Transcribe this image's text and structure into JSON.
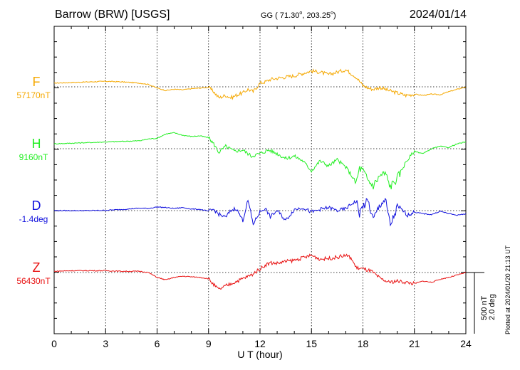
{
  "header": {
    "station": "Barrow (BRW)  [USGS]",
    "coords_prefix": "GG ( 71.30",
    "coords_mid": ", 203.25",
    "coords_suffix": ")",
    "degree_sign": "o",
    "date": "2024/01/14"
  },
  "scale": {
    "line1": "500 nT",
    "line2": "2.0 deg"
  },
  "plotted_note": "Plotted at 2024/01/20 21:13 UT",
  "chart_data": {
    "type": "line",
    "xlabel": "U T (hour)",
    "xlim": [
      0,
      24
    ],
    "xticks": [
      0,
      3,
      6,
      9,
      12,
      15,
      18,
      21,
      24
    ],
    "scale_bar": {
      "nT": 500,
      "deg": 2.0
    },
    "grid": true,
    "series": [
      {
        "name": "F",
        "baseline_label": "57170nT",
        "baseline_value": 57170,
        "unit": "nT",
        "color": "#f5a800",
        "x": [
          0,
          1,
          2,
          3,
          4,
          5,
          5.5,
          6,
          6.5,
          7,
          7.5,
          8,
          8.5,
          9,
          9.3,
          9.6,
          10,
          10.3,
          10.6,
          11,
          11.3,
          11.6,
          12,
          12.3,
          12.6,
          13,
          13.5,
          14,
          14.5,
          15,
          15.5,
          16,
          16.5,
          17,
          17.3,
          17.6,
          18,
          18.3,
          18.6,
          19,
          19.5,
          20,
          20.5,
          21,
          21.5,
          22,
          22.5,
          23,
          23.5,
          24
        ],
        "y": [
          57200,
          57205,
          57210,
          57215,
          57210,
          57200,
          57190,
          57160,
          57140,
          57150,
          57145,
          57155,
          57160,
          57165,
          57130,
          57080,
          57100,
          57080,
          57100,
          57120,
          57150,
          57130,
          57200,
          57210,
          57230,
          57240,
          57250,
          57260,
          57280,
          57300,
          57290,
          57270,
          57290,
          57310,
          57280,
          57250,
          57180,
          57160,
          57150,
          57165,
          57140,
          57120,
          57100,
          57110,
          57100,
          57110,
          57105,
          57130,
          57150,
          57170
        ]
      },
      {
        "name": "H",
        "baseline_label": "9160nT",
        "baseline_value": 9160,
        "unit": "nT",
        "color": "#22ee22",
        "x": [
          0,
          1,
          2,
          3,
          4,
          5,
          5.5,
          6,
          6.5,
          7,
          7.5,
          8,
          8.5,
          9,
          9.3,
          9.6,
          10,
          10.5,
          11,
          11.5,
          12,
          12.5,
          13,
          13.5,
          14,
          14.5,
          15,
          15.5,
          16,
          16.5,
          17,
          17.3,
          17.6,
          17.8,
          18,
          18.3,
          18.6,
          19,
          19.3,
          19.6,
          20,
          20.5,
          21,
          21.5,
          22,
          22.5,
          23,
          23.5,
          24
        ],
        "y": [
          9200,
          9205,
          9210,
          9215,
          9220,
          9225,
          9240,
          9245,
          9280,
          9290,
          9270,
          9260,
          9265,
          9250,
          9200,
          9130,
          9180,
          9140,
          9150,
          9100,
          9120,
          9150,
          9120,
          9080,
          9100,
          9060,
          8980,
          9060,
          9020,
          9070,
          9010,
          8950,
          8880,
          9000,
          8980,
          8900,
          8860,
          8940,
          8960,
          8850,
          8920,
          9050,
          9140,
          9120,
          9160,
          9180,
          9170,
          9200,
          9215
        ]
      },
      {
        "name": "D",
        "baseline_label": "-1.4deg",
        "baseline_value": -1.4,
        "unit": "deg",
        "color": "#1010dd",
        "x": [
          0,
          1,
          2,
          3,
          4,
          5,
          5.5,
          6,
          6.5,
          7,
          7.5,
          8,
          8.5,
          9,
          9.3,
          9.6,
          10,
          10.3,
          10.6,
          11,
          11.3,
          11.6,
          12,
          12.3,
          12.6,
          13,
          13.5,
          14,
          14.5,
          15,
          15.5,
          16,
          16.5,
          17,
          17.3,
          17.6,
          17.8,
          18,
          18.3,
          18.6,
          19,
          19.3,
          19.6,
          20,
          20.3,
          20.6,
          21,
          21.5,
          22,
          22.5,
          23,
          23.5,
          24
        ],
        "y": [
          -1.4,
          -1.4,
          -1.4,
          -1.39,
          -1.36,
          -1.32,
          -1.33,
          -1.28,
          -1.3,
          -1.33,
          -1.3,
          -1.35,
          -1.36,
          -1.42,
          -1.36,
          -1.52,
          -1.62,
          -1.4,
          -1.32,
          -1.72,
          -1.06,
          -1.84,
          -1.44,
          -1.32,
          -1.6,
          -1.4,
          -1.72,
          -1.36,
          -1.3,
          -1.45,
          -1.36,
          -1.3,
          -1.4,
          -1.34,
          -1.2,
          -1.08,
          -1.5,
          -1.25,
          -1.1,
          -1.7,
          -1.2,
          -1.04,
          -1.88,
          -1.3,
          -1.38,
          -1.55,
          -1.45,
          -1.5,
          -1.53,
          -1.42,
          -1.5,
          -1.55,
          -1.5
        ]
      },
      {
        "name": "Z",
        "baseline_label": "56430nT",
        "baseline_value": 56430,
        "unit": "nT",
        "color": "#e81010",
        "x": [
          0,
          1,
          2,
          3,
          4,
          5,
          5.5,
          6,
          6.5,
          7,
          7.5,
          8,
          8.5,
          9,
          9.3,
          9.6,
          10,
          10.5,
          11,
          11.5,
          12,
          12.3,
          12.6,
          13,
          13.5,
          14,
          14.5,
          15,
          15.5,
          16,
          16.5,
          17,
          17.3,
          17.6,
          18,
          18.5,
          19,
          19.5,
          20,
          20.5,
          21,
          21.5,
          22,
          22.5,
          23,
          23.5,
          24
        ],
        "y": [
          56440,
          56445,
          56445,
          56445,
          56440,
          56440,
          56430,
          56390,
          56370,
          56390,
          56400,
          56395,
          56390,
          56380,
          56330,
          56290,
          56320,
          56350,
          56380,
          56410,
          56460,
          56490,
          56510,
          56505,
          56520,
          56530,
          56550,
          56570,
          56540,
          56545,
          56555,
          56570,
          56550,
          56470,
          56460,
          56440,
          56380,
          56350,
          56360,
          56350,
          56340,
          56360,
          56350,
          56375,
          56390,
          56410,
          56430
        ]
      }
    ]
  }
}
